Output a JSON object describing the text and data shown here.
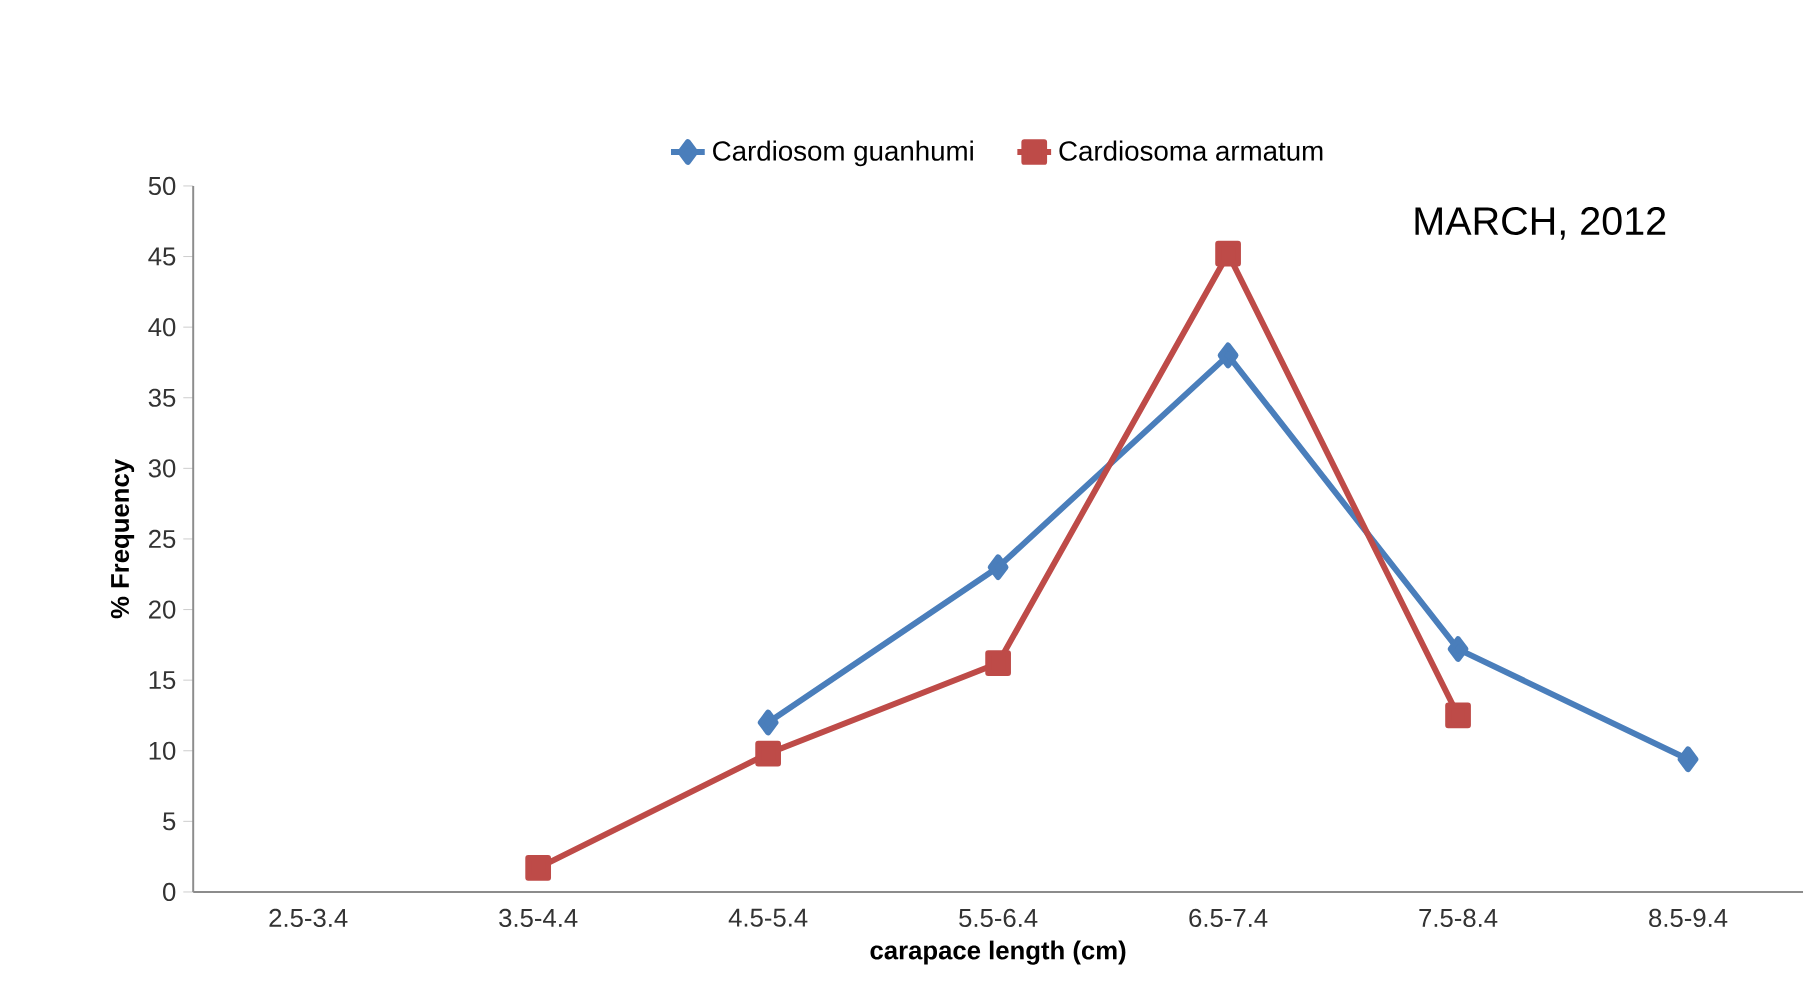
{
  "chart_data": {
    "type": "line",
    "xlabel": "carapace  length (cm)",
    "ylabel": "% Frequency",
    "annotations": [
      "MARCH, 2012"
    ],
    "categories": [
      "2.5-3.4",
      "3.5-4.4",
      "4.5-5.4",
      "5.5-6.4",
      "6.5-7.4",
      "7.5-8.4",
      "8.5-9.4"
    ],
    "series": [
      {
        "name": "Cardiosom guanhumi",
        "color": "#4a7ebb",
        "marker": "diamond",
        "values": [
          null,
          null,
          12.0,
          23.0,
          38.0,
          17.2,
          9.4
        ]
      },
      {
        "name": "Cardiosoma armatum",
        "color": "#be4b48",
        "marker": "square",
        "values": [
          null,
          1.7,
          9.8,
          16.2,
          45.2,
          12.5,
          null
        ]
      }
    ],
    "ylim": [
      0,
      50
    ],
    "yticks": [
      0,
      5,
      10,
      15,
      20,
      25,
      30,
      35,
      40,
      45,
      50
    ],
    "grid": false,
    "legend": "top"
  }
}
